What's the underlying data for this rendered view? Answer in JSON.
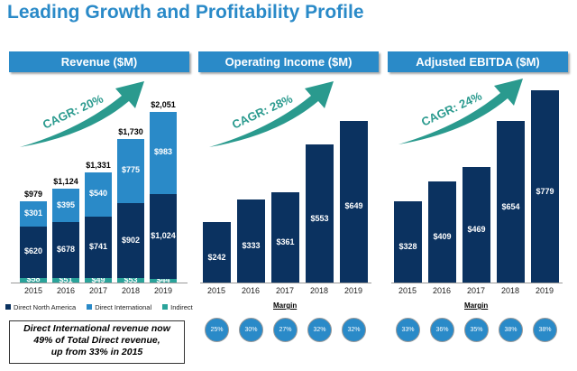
{
  "title": "Leading Growth and Profitability Profile",
  "colors": {
    "dna": "#0b3260",
    "dint": "#2a8ac8",
    "ind": "#2aa39a",
    "arrow": "#2a9a8e"
  },
  "note": [
    "Direct International revenue now",
    "49% of Total Direct revenue,",
    "up from 33% in 2015"
  ],
  "chart_data": [
    {
      "type": "bar",
      "stacked": true,
      "title": "Revenue ($M)",
      "categories": [
        "2015",
        "2016",
        "2017",
        "2018",
        "2019"
      ],
      "series": [
        {
          "name": "Indirect",
          "values": [
            58,
            51,
            49,
            53,
            44
          ],
          "labels": [
            "$58",
            "$51",
            "$49",
            "$53",
            "$44"
          ]
        },
        {
          "name": "Direct North America",
          "values": [
            620,
            678,
            741,
            902,
            1024
          ],
          "labels": [
            "$620",
            "$678",
            "$741",
            "$902",
            "$1,024"
          ]
        },
        {
          "name": "Direct International",
          "values": [
            301,
            395,
            540,
            775,
            983
          ],
          "labels": [
            "$301",
            "$395",
            "$540",
            "$775",
            "$983"
          ]
        }
      ],
      "totals": [
        "$979",
        "$1,124",
        "$1,331",
        "$1,730",
        "$2,051"
      ],
      "total_values": [
        979,
        1124,
        1331,
        1730,
        2051
      ],
      "annotation": "CAGR: 20%",
      "legend": [
        "Direct North America",
        "Direct International",
        "Indirect"
      ],
      "legend_position": "bottom"
    },
    {
      "type": "bar",
      "title": "Operating Income ($M)",
      "categories": [
        "2015",
        "2016",
        "2017",
        "2018",
        "2019"
      ],
      "values": [
        242,
        333,
        361,
        553,
        649
      ],
      "labels": [
        "$242",
        "$333",
        "$361",
        "$553",
        "$649"
      ],
      "annotation": "CAGR: 28%",
      "margin_label": "Margin",
      "margins": [
        "25%",
        "30%",
        "27%",
        "32%",
        "32%"
      ]
    },
    {
      "type": "bar",
      "title": "Adjusted EBITDA ($M)",
      "categories": [
        "2015",
        "2016",
        "2017",
        "2018",
        "2019"
      ],
      "values": [
        328,
        409,
        469,
        654,
        779
      ],
      "labels": [
        "$328",
        "$409",
        "$469",
        "$654",
        "$779"
      ],
      "annotation": "CAGR: 24%",
      "margin_label": "Margin",
      "margins": [
        "33%",
        "36%",
        "35%",
        "38%",
        "38%"
      ]
    }
  ]
}
